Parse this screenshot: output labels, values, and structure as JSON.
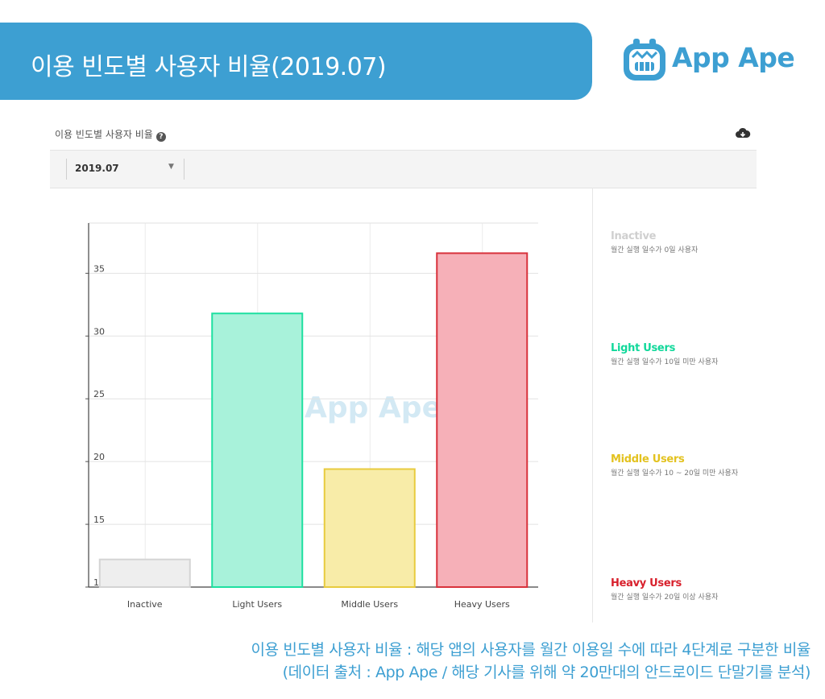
{
  "header": {
    "title": "이용 빈도별 사용자 비율(2019.07)",
    "brand": "App Ape"
  },
  "panel": {
    "title": "이용 빈도별 사용자 비율",
    "month_select": "2019.07"
  },
  "chart_data": {
    "type": "bar",
    "categories": [
      "Inactive",
      "Light Users",
      "Middle Users",
      "Heavy Users"
    ],
    "values": [
      12.2,
      31.8,
      19.4,
      36.6
    ],
    "y_ticks": [
      "10",
      "15",
      "20",
      "25",
      "30",
      "35"
    ],
    "ylim": [
      10,
      39
    ],
    "grid": true,
    "watermark": "App Ape",
    "colors": {
      "fill": [
        "#eeeeee",
        "#a8f2da",
        "#f8eca8",
        "#f6b0b8"
      ],
      "stroke": [
        "#d4d4d4",
        "#1ee0a0",
        "#e8cb3e",
        "#d8323c"
      ]
    }
  },
  "legend": [
    {
      "title": "Inactive",
      "desc": "월간 실행 일수가 0일 사용자",
      "color": "#cfcfcf"
    },
    {
      "title": "Light Users",
      "desc": "월간 실행 일수가 10일 미만 사용자",
      "color": "#10d89a"
    },
    {
      "title": "Middle Users",
      "desc": "월간 실행 일수가 10 ~ 20일 미만 사용자",
      "color": "#e3c21f"
    },
    {
      "title": "Heavy Users",
      "desc": "월간 실행 일수가 20일 이상 사용자",
      "color": "#d8202c"
    }
  ],
  "caption": {
    "line1": "이용 빈도별 사용자 비율 : 해당 앱의 사용자를 월간 이용일 수에 따라 4단계로 구분한 비율",
    "line2": "(데이터 출처 : App Ape / 해당 기사를 위해 약 20만대의 안드로이드 단말기를 분석)"
  }
}
